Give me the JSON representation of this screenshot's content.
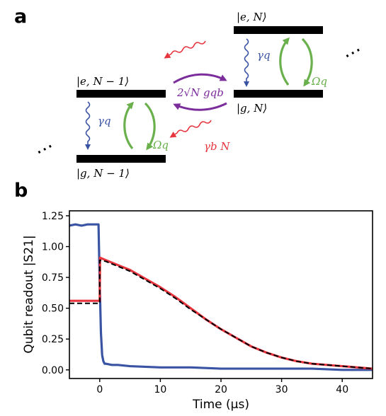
{
  "panel_a": {
    "label": "a",
    "levels": {
      "e_N": "|e, N⟩",
      "g_N": "|g, N⟩",
      "e_N_minus_1": "|e, N − 1⟩",
      "g_N_minus_1": "|g, N − 1⟩"
    },
    "rates": {
      "gamma_q": "γq",
      "omega_q": "Ωq",
      "coupling": "2√N gqb",
      "gamma_b_N": "γb N"
    },
    "ellipsis": "⋯",
    "colors": {
      "decay": "#3a54a4",
      "drive": "#6ab04c",
      "coupling": "#7b2d9c",
      "bath": "#e8343c"
    }
  },
  "panel_b": {
    "label": "b",
    "chart_data": {
      "type": "line",
      "xlabel": "Time (μs)",
      "ylabel": "Qubit readout |S21|",
      "xlim": [
        -5,
        45
      ],
      "ylim": [
        -0.07,
        1.29
      ],
      "xticks": [
        0,
        10,
        20,
        30,
        40
      ],
      "yticks": [
        0.0,
        0.25,
        0.5,
        0.75,
        1.0,
        1.25
      ],
      "xtick_labels": [
        "0",
        "10",
        "20",
        "30",
        "40"
      ],
      "ytick_labels": [
        "0.00",
        "0.25",
        "0.50",
        "0.75",
        "1.00",
        "1.25"
      ],
      "series": [
        {
          "color": "#3a54a4",
          "style": "solid",
          "x": [
            -5,
            -4,
            -3,
            -2,
            -1,
            -0.2,
            0,
            0.2,
            0.4,
            0.6,
            0.8,
            1,
            2,
            3,
            5,
            10,
            15,
            20,
            25,
            30,
            35,
            40,
            45
          ],
          "y": [
            1.17,
            1.18,
            1.17,
            1.18,
            1.18,
            1.18,
            0.7,
            0.3,
            0.12,
            0.07,
            0.05,
            0.05,
            0.04,
            0.04,
            0.03,
            0.02,
            0.02,
            0.01,
            0.01,
            0.01,
            0.01,
            0.0,
            0.0
          ]
        },
        {
          "color": "#e8343c",
          "style": "solid",
          "x": [
            -5,
            -2,
            0,
            0.05,
            1,
            2.5,
            5,
            7.5,
            10,
            12.5,
            15,
            17.5,
            20,
            22.5,
            25,
            27.5,
            30,
            32.5,
            35,
            37.5,
            40,
            42.5,
            45
          ],
          "y": [
            0.56,
            0.56,
            0.56,
            0.91,
            0.89,
            0.86,
            0.81,
            0.74,
            0.67,
            0.59,
            0.5,
            0.41,
            0.33,
            0.26,
            0.19,
            0.14,
            0.1,
            0.07,
            0.05,
            0.04,
            0.03,
            0.02,
            0.01
          ]
        },
        {
          "color": "#000000",
          "style": "dashed",
          "x": [
            -5,
            -2,
            0,
            0,
            1,
            2.5,
            5,
            7.5,
            10,
            12.5,
            15,
            17.5,
            20,
            22.5,
            25,
            27.5,
            30,
            32.5,
            35,
            37.5,
            40,
            42.5,
            45
          ],
          "y": [
            0.54,
            0.54,
            0.54,
            0.89,
            0.88,
            0.85,
            0.8,
            0.73,
            0.66,
            0.58,
            0.49,
            0.41,
            0.33,
            0.26,
            0.19,
            0.14,
            0.1,
            0.07,
            0.05,
            0.04,
            0.03,
            0.02,
            0.01
          ]
        }
      ]
    }
  }
}
